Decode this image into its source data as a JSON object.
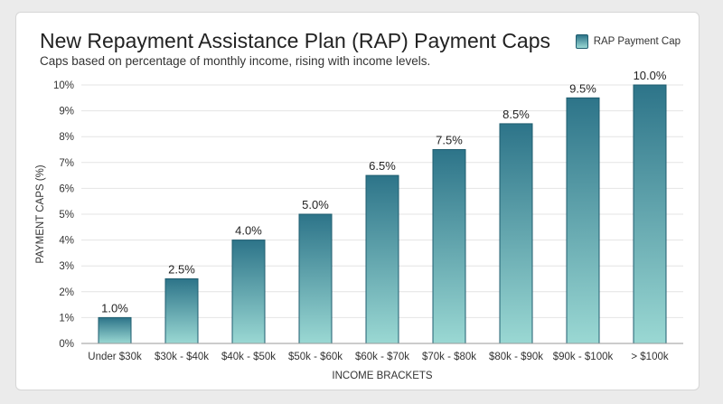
{
  "chart_data": {
    "type": "bar",
    "title": "New Repayment Assistance Plan (RAP) Payment Caps",
    "subtitle": "Caps based on percentage of monthly income, rising with income levels.",
    "xlabel": "INCOME BRACKETS",
    "ylabel": "PAYMENT CAPS (%)",
    "categories": [
      "Under $30k",
      "$30k - $40k",
      "$40k - $50k",
      "$50k - $60k",
      "$60k - $70k",
      "$70k - $80k",
      "$80k - $90k",
      "$90k - $100k",
      "> $100k"
    ],
    "series": [
      {
        "name": "RAP Payment Cap",
        "values": [
          1.0,
          2.5,
          4.0,
          5.0,
          6.5,
          7.5,
          8.5,
          9.5,
          10.0
        ],
        "labels": [
          "1.0%",
          "2.5%",
          "4.0%",
          "5.0%",
          "6.5%",
          "7.5%",
          "8.5%",
          "9.5%",
          "10.0%"
        ]
      }
    ],
    "ylim": [
      0,
      10
    ],
    "yticks": [
      "0%",
      "1%",
      "2%",
      "3%",
      "4%",
      "5%",
      "6%",
      "7%",
      "8%",
      "9%",
      "10%"
    ],
    "grid": true,
    "legend_position": "top-right",
    "colors": {
      "bar_top": "#2d7489",
      "bar_bottom": "#9ad8d3",
      "bar_edge": "#1f5d6f",
      "grid": "#e4e4e4",
      "axis": "#999999"
    }
  }
}
